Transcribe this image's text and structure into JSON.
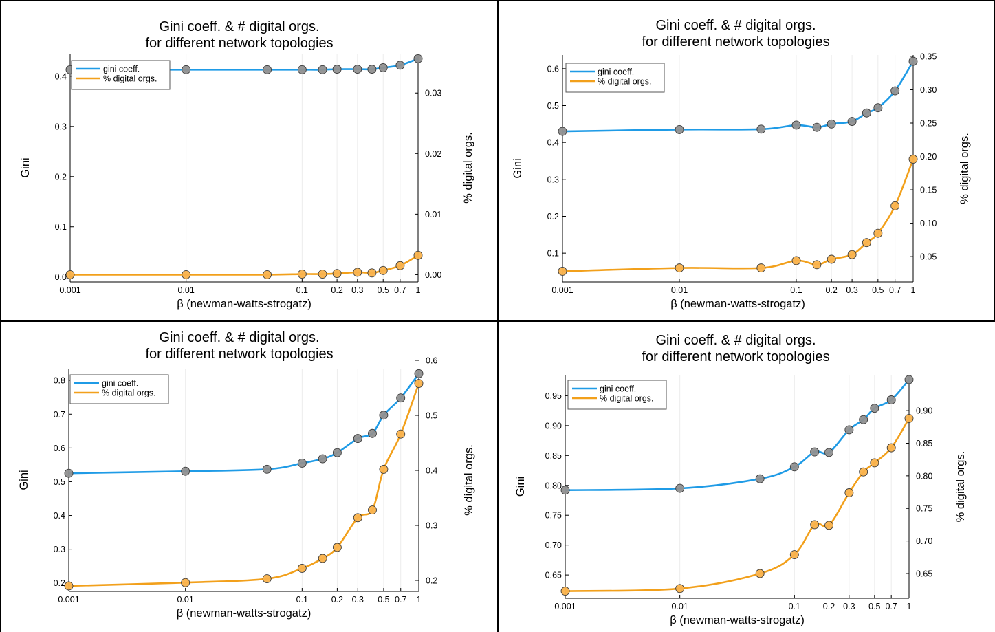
{
  "chart_data": [
    {
      "type": "line",
      "title": "Gini coeff. & # digital orgs.",
      "subtitle": "for different network topologies",
      "xlabel": "β (newman-watts-strogatz)",
      "ylabel": "Gini",
      "y2label": "% digital orgs.",
      "xscale": "log",
      "xlim": [
        0.001,
        1
      ],
      "ylim": [
        -0.01,
        0.445
      ],
      "y2lim": [
        -0.0012,
        0.0365
      ],
      "xticks": [
        0.001,
        0.01,
        0.1,
        0.2,
        0.3,
        0.5,
        0.7,
        1
      ],
      "xtick_labels": [
        "0.001",
        "0.01",
        "0.1",
        "0.2",
        "0.3",
        "0.5",
        "0.7",
        "1"
      ],
      "yticks": [
        0.0,
        0.1,
        0.2,
        0.3,
        0.4
      ],
      "ytick_labels": [
        "0.0",
        "0.1",
        "0.2",
        "0.3",
        "0.4"
      ],
      "y2ticks": [
        0.0,
        0.01,
        0.02,
        0.03
      ],
      "y2tick_labels": [
        "0.00",
        "0.01",
        "0.02",
        "0.03"
      ],
      "legend": "top-left",
      "grid": "vertical",
      "x": [
        0.001,
        0.01,
        0.05,
        0.1,
        0.15,
        0.2,
        0.3,
        0.4,
        0.5,
        0.7,
        1
      ],
      "series": [
        {
          "name": "gini coeff.",
          "axis": "left",
          "color": "#1f9be6",
          "marker": "#909090",
          "values": [
            0.413,
            0.413,
            0.413,
            0.413,
            0.413,
            0.414,
            0.414,
            0.414,
            0.417,
            0.422,
            0.435
          ]
        },
        {
          "name": "% digital orgs.",
          "axis": "right",
          "color": "#f2a01b",
          "marker": "#f9b24c",
          "values": [
            0.0,
            0.0,
            0.0,
            0.0001,
            0.0001,
            0.0002,
            0.0004,
            0.0003,
            0.0007,
            0.0015,
            0.0032
          ]
        }
      ]
    },
    {
      "type": "line",
      "title": "Gini coeff. & # digital orgs.",
      "subtitle": "for different network topologies",
      "xlabel": "β (newman-watts-strogatz)",
      "ylabel": "Gini",
      "y2label": "% digital orgs.",
      "xscale": "log",
      "xlim": [
        0.001,
        1
      ],
      "ylim": [
        0.022,
        0.637
      ],
      "y2lim": [
        0.012,
        0.352
      ],
      "xticks": [
        0.001,
        0.01,
        0.1,
        0.2,
        0.3,
        0.5,
        0.7,
        1
      ],
      "xtick_labels": [
        "0.001",
        "0.01",
        "0.1",
        "0.2",
        "0.3",
        "0.5",
        "0.7",
        "1"
      ],
      "yticks": [
        0.1,
        0.2,
        0.3,
        0.4,
        0.5,
        0.6
      ],
      "ytick_labels": [
        "0.1",
        "0.2",
        "0.3",
        "0.4",
        "0.5",
        "0.6"
      ],
      "y2ticks": [
        0.05,
        0.1,
        0.15,
        0.2,
        0.25,
        0.3,
        0.35
      ],
      "y2tick_labels": [
        "0.05",
        "0.10",
        "0.15",
        "0.20",
        "0.25",
        "0.30",
        "0.35"
      ],
      "legend": "top-left",
      "grid": "vertical",
      "x": [
        0.001,
        0.01,
        0.05,
        0.1,
        0.15,
        0.2,
        0.3,
        0.4,
        0.5,
        0.7,
        1
      ],
      "series": [
        {
          "name": "gini coeff.",
          "axis": "left",
          "color": "#1f9be6",
          "marker": "#909090",
          "values": [
            0.43,
            0.435,
            0.436,
            0.447,
            0.441,
            0.45,
            0.457,
            0.48,
            0.494,
            0.54,
            0.62
          ]
        },
        {
          "name": "% digital orgs.",
          "axis": "right",
          "color": "#f2a01b",
          "marker": "#f9b24c",
          "values": [
            0.028,
            0.033,
            0.033,
            0.044,
            0.038,
            0.046,
            0.053,
            0.071,
            0.085,
            0.126,
            0.196
          ]
        }
      ]
    },
    {
      "type": "line",
      "title": "Gini coeff. & # digital orgs.",
      "subtitle": "for different network topologies",
      "xlabel": "β (newman-watts-strogatz)",
      "ylabel": "Gini",
      "y2label": "% digital orgs.",
      "xscale": "log",
      "xlim": [
        0.001,
        1
      ],
      "ylim": [
        0.175,
        0.835
      ],
      "y2lim": [
        0.18,
        0.585
      ],
      "xticks": [
        0.001,
        0.01,
        0.1,
        0.2,
        0.3,
        0.5,
        0.7,
        1
      ],
      "xtick_labels": [
        "0.001",
        "0.01",
        "0.1",
        "0.2",
        "0.3",
        "0.5",
        "0.7",
        "1"
      ],
      "yticks": [
        0.2,
        0.3,
        0.4,
        0.5,
        0.6,
        0.7,
        0.8
      ],
      "ytick_labels": [
        "0.2",
        "0.3",
        "0.4",
        "0.5",
        "0.6",
        "0.7",
        "0.8"
      ],
      "y2ticks": [
        0.2,
        0.3,
        0.4,
        0.5,
        0.6
      ],
      "y2tick_labels": [
        "0.2",
        "0.3",
        "0.4",
        "0.5",
        "0.6"
      ],
      "legend": "top-left",
      "grid": "vertical",
      "x": [
        0.001,
        0.01,
        0.05,
        0.1,
        0.15,
        0.2,
        0.3,
        0.4,
        0.5,
        0.7,
        1
      ],
      "series": [
        {
          "name": "gini coeff.",
          "axis": "left",
          "color": "#1f9be6",
          "marker": "#909090",
          "values": [
            0.525,
            0.531,
            0.537,
            0.555,
            0.568,
            0.586,
            0.628,
            0.643,
            0.697,
            0.748,
            0.82
          ]
        },
        {
          "name": "% digital orgs.",
          "axis": "right",
          "color": "#f2a01b",
          "marker": "#f9b24c",
          "values": [
            0.19,
            0.196,
            0.203,
            0.222,
            0.24,
            0.26,
            0.314,
            0.328,
            0.402,
            0.466,
            0.558
          ]
        }
      ]
    },
    {
      "type": "line",
      "title": "Gini coeff. & # digital orgs.",
      "subtitle": "for different network topologies",
      "xlabel": "β (newman-watts-strogatz)",
      "ylabel": "Gini",
      "y2label": "% digital orgs.",
      "xscale": "log",
      "xlim": [
        0.001,
        1
      ],
      "ylim": [
        0.611,
        0.985
      ],
      "y2lim": [
        0.612,
        0.955
      ],
      "xticks": [
        0.001,
        0.01,
        0.1,
        0.2,
        0.3,
        0.5,
        0.7,
        1
      ],
      "xtick_labels": [
        "0.001",
        "0.01",
        "0.1",
        "0.2",
        "0.3",
        "0.5",
        "0.7",
        "1"
      ],
      "yticks": [
        0.65,
        0.7,
        0.75,
        0.8,
        0.85,
        0.9,
        0.95
      ],
      "ytick_labels": [
        "0.65",
        "0.70",
        "0.75",
        "0.80",
        "0.85",
        "0.90",
        "0.95"
      ],
      "y2ticks": [
        0.65,
        0.7,
        0.75,
        0.8,
        0.85,
        0.9
      ],
      "y2tick_labels": [
        "0.65",
        "0.70",
        "0.75",
        "0.80",
        "0.85",
        "0.90"
      ],
      "legend": "top-left",
      "grid": "vertical",
      "x": [
        0.001,
        0.01,
        0.05,
        0.1,
        0.15,
        0.2,
        0.3,
        0.4,
        0.5,
        0.7,
        1
      ],
      "series": [
        {
          "name": "gini coeff.",
          "axis": "left",
          "color": "#1f9be6",
          "marker": "#909090",
          "values": [
            0.792,
            0.795,
            0.811,
            0.831,
            0.856,
            0.855,
            0.893,
            0.91,
            0.929,
            0.943,
            0.977
          ]
        },
        {
          "name": "% digital orgs.",
          "axis": "right",
          "color": "#f2a01b",
          "marker": "#f9b24c",
          "values": [
            0.623,
            0.627,
            0.65,
            0.679,
            0.725,
            0.724,
            0.774,
            0.806,
            0.82,
            0.843,
            0.888
          ]
        }
      ]
    }
  ]
}
